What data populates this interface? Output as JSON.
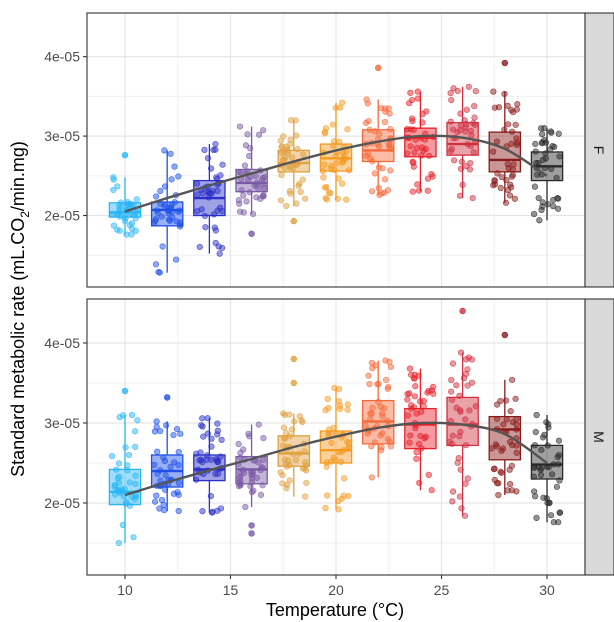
{
  "chart_data": {
    "type": "boxplot",
    "xlabel": "Temperature (°C)",
    "ylabel": "Standard metabolic rate (mL.CO2/min.mg)",
    "ylabel_parts": {
      "before": "Standard metabolic rate (mL.CO",
      "sub": "2",
      "after": "/min.mg)"
    },
    "x_ticks": [
      10,
      15,
      20,
      25,
      30
    ],
    "x_ticks_text": [
      "10",
      "15",
      "20",
      "25",
      "30"
    ],
    "xlim": [
      8.2,
      31.8
    ],
    "ylim": [
      1.1e-05,
      4.55e-05
    ],
    "y_ticks": [
      2e-05,
      3e-05,
      4e-05
    ],
    "y_ticks_text": [
      "2e-05",
      "3e-05",
      "4e-05"
    ],
    "grid": true,
    "trend_color": "#555555",
    "temperatures": [
      10,
      12,
      14,
      16,
      18,
      20,
      22,
      24,
      26,
      28,
      30
    ],
    "colors": [
      "#29B6F6",
      "#1E50E8",
      "#2A2FC8",
      "#7A5AA6",
      "#E0A040",
      "#F59A20",
      "#F56A3A",
      "#E8202A",
      "#D03040",
      "#8B1A1A",
      "#2A2A2A"
    ],
    "panels": [
      {
        "strip": "F",
        "boxes": [
          {
            "x": 10,
            "q1": 1.98e-05,
            "median": 2.04e-05,
            "q3": 2.16e-05,
            "lower": 1.76e-05,
            "upper": 2.48e-05,
            "outliers": [
              2.76e-05
            ]
          },
          {
            "x": 12,
            "q1": 1.87e-05,
            "median": 2.07e-05,
            "q3": 2.17e-05,
            "lower": 1.28e-05,
            "upper": 2.82e-05,
            "outliers": []
          },
          {
            "x": 14,
            "q1": 2e-05,
            "median": 2.22e-05,
            "q3": 2.44e-05,
            "lower": 1.52e-05,
            "upper": 2.9e-05,
            "outliers": []
          },
          {
            "x": 16,
            "q1": 2.3e-05,
            "median": 2.41e-05,
            "q3": 2.58e-05,
            "lower": 2.02e-05,
            "upper": 3.12e-05,
            "outliers": [
              1.77e-05
            ]
          },
          {
            "x": 18,
            "q1": 2.55e-05,
            "median": 2.66e-05,
            "q3": 2.82e-05,
            "lower": 2.12e-05,
            "upper": 3.2e-05,
            "outliers": [
              1.93e-05
            ]
          },
          {
            "x": 20,
            "q1": 2.56e-05,
            "median": 2.72e-05,
            "q3": 2.9e-05,
            "lower": 2.2e-05,
            "upper": 3.42e-05,
            "outliers": []
          },
          {
            "x": 22,
            "q1": 2.68e-05,
            "median": 2.82e-05,
            "q3": 3.08e-05,
            "lower": 2.26e-05,
            "upper": 3.46e-05,
            "outliers": [
              3.86e-05
            ]
          },
          {
            "x": 24,
            "q1": 2.74e-05,
            "median": 2.98e-05,
            "q3": 3.1e-05,
            "lower": 2.3e-05,
            "upper": 3.56e-05,
            "outliers": []
          },
          {
            "x": 26,
            "q1": 2.76e-05,
            "median": 2.9e-05,
            "q3": 3.17e-05,
            "lower": 2.22e-05,
            "upper": 3.62e-05,
            "outliers": []
          },
          {
            "x": 28,
            "q1": 2.55e-05,
            "median": 2.7e-05,
            "q3": 3.05e-05,
            "lower": 2.16e-05,
            "upper": 3.56e-05,
            "outliers": [
              3.92e-05
            ]
          },
          {
            "x": 30,
            "q1": 2.44e-05,
            "median": 2.62e-05,
            "q3": 2.8e-05,
            "lower": 1.94e-05,
            "upper": 3.1e-05,
            "outliers": []
          }
        ],
        "trend": {
          "x": [
            10,
            12,
            14,
            16,
            18,
            20,
            22,
            24,
            26,
            28,
            30
          ],
          "y": [
            2.05e-05,
            2.22e-05,
            2.38e-05,
            2.53e-05,
            2.68e-05,
            2.82e-05,
            2.93e-05,
            3e-05,
            2.98e-05,
            2.84e-05,
            2.5e-05
          ]
        }
      },
      {
        "strip": "M",
        "boxes": [
          {
            "x": 10,
            "q1": 1.98e-05,
            "median": 2.14e-05,
            "q3": 2.42e-05,
            "lower": 1.5e-05,
            "upper": 3.1e-05,
            "outliers": [
              3.4e-05
            ]
          },
          {
            "x": 12,
            "q1": 2.2e-05,
            "median": 2.4e-05,
            "q3": 2.6e-05,
            "lower": 1.9e-05,
            "upper": 3.02e-05,
            "outliers": [
              3.32e-05
            ]
          },
          {
            "x": 14,
            "q1": 2.28e-05,
            "median": 2.42e-05,
            "q3": 2.6e-05,
            "lower": 1.88e-05,
            "upper": 3.06e-05,
            "outliers": []
          },
          {
            "x": 16,
            "q1": 2.24e-05,
            "median": 2.42e-05,
            "q3": 2.58e-05,
            "lower": 1.95e-05,
            "upper": 2.98e-05,
            "outliers": [
              1.72e-05,
              1.62e-05
            ]
          },
          {
            "x": 18,
            "q1": 2.46e-05,
            "median": 2.62e-05,
            "q3": 2.84e-05,
            "lower": 2.08e-05,
            "upper": 3.12e-05,
            "outliers": [
              3.5e-05,
              3.8e-05
            ]
          },
          {
            "x": 20,
            "q1": 2.5e-05,
            "median": 2.66e-05,
            "q3": 2.9e-05,
            "lower": 1.92e-05,
            "upper": 3.44e-05,
            "outliers": []
          },
          {
            "x": 22,
            "q1": 2.74e-05,
            "median": 3.02e-05,
            "q3": 3.28e-05,
            "lower": 2.32e-05,
            "upper": 3.78e-05,
            "outliers": []
          },
          {
            "x": 24,
            "q1": 2.68e-05,
            "median": 2.98e-05,
            "q3": 3.18e-05,
            "lower": 2.16e-05,
            "upper": 3.68e-05,
            "outliers": []
          },
          {
            "x": 26,
            "q1": 2.72e-05,
            "median": 2.98e-05,
            "q3": 3.32e-05,
            "lower": 1.84e-05,
            "upper": 3.88e-05,
            "outliers": [
              4.4e-05
            ]
          },
          {
            "x": 28,
            "q1": 2.54e-05,
            "median": 2.92e-05,
            "q3": 3.08e-05,
            "lower": 2.1e-05,
            "upper": 3.54e-05,
            "outliers": [
              4.1e-05
            ]
          },
          {
            "x": 30,
            "q1": 2.3e-05,
            "median": 2.48e-05,
            "q3": 2.72e-05,
            "lower": 1.76e-05,
            "upper": 3.1e-05,
            "outliers": []
          }
        ],
        "trend": {
          "x": [
            10,
            12,
            14,
            16,
            18,
            20,
            22,
            24,
            26,
            28,
            30
          ],
          "y": [
            2.1e-05,
            2.26e-05,
            2.41e-05,
            2.55e-05,
            2.7e-05,
            2.83e-05,
            2.94e-05,
            3e-05,
            2.98e-05,
            2.86e-05,
            2.5e-05
          ]
        }
      }
    ]
  }
}
